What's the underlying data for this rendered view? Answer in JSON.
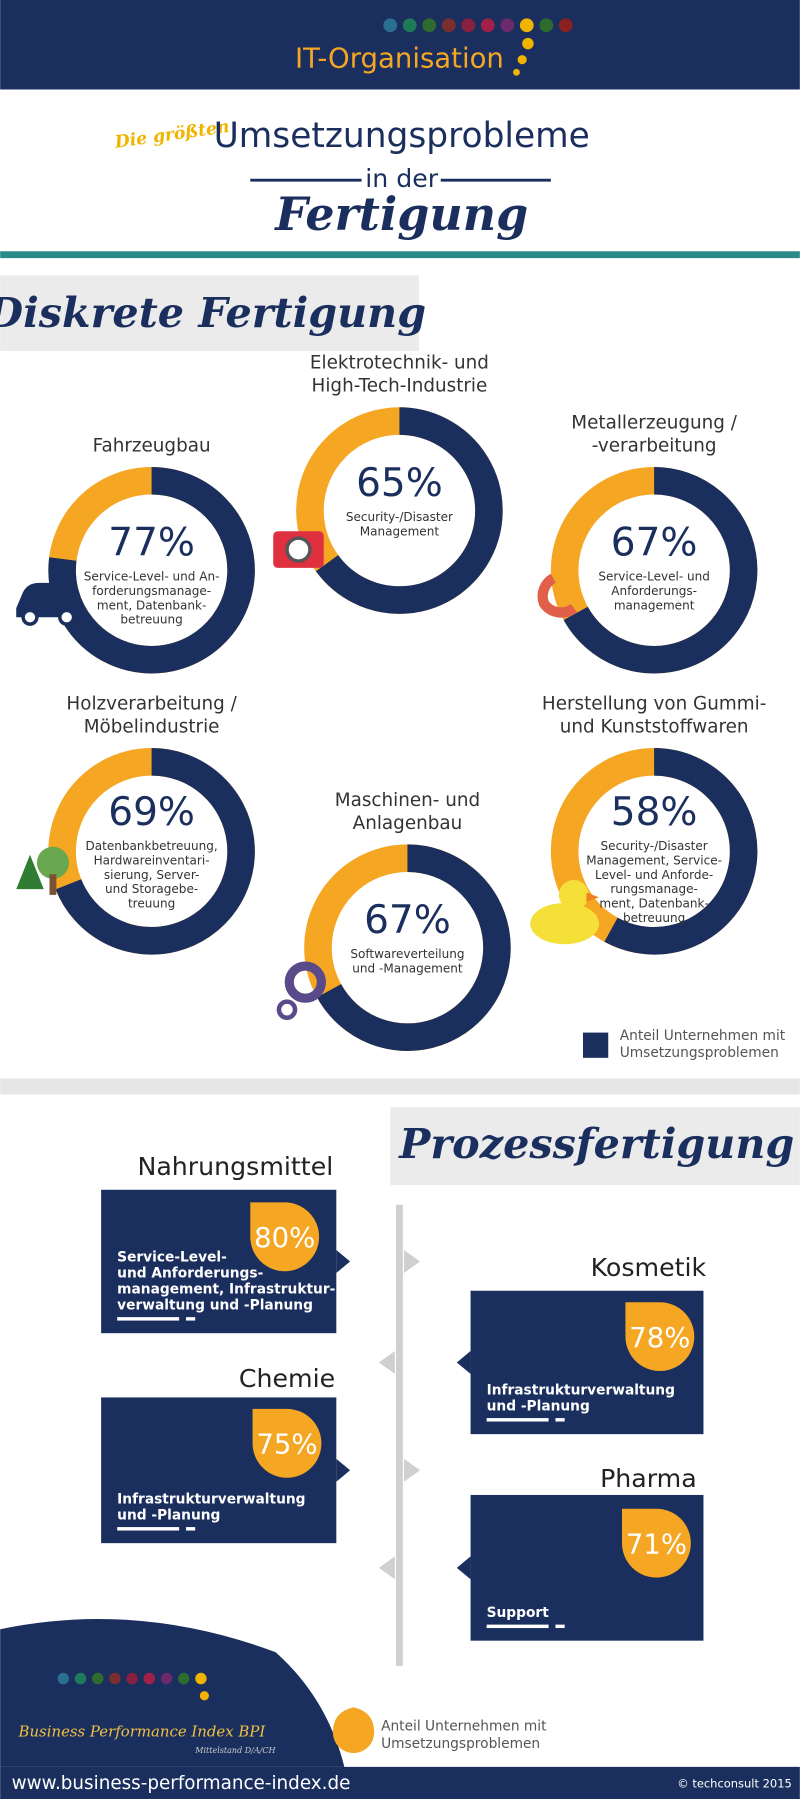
{
  "header": {
    "title": "IT-Organisation",
    "kicker": "Die größten",
    "headline": "Umsetzungsprobleme",
    "connector": "in der",
    "subject": "Fertigung"
  },
  "discrete": {
    "title": "Diskrete Fertigung",
    "items": [
      {
        "name": [
          "Fahrzeugbau"
        ],
        "value": 77,
        "value_label": "77%",
        "description": [
          "Service-Level- und An-",
          "forderungsmanage-",
          "ment, Datenbank-",
          "betreuung"
        ]
      },
      {
        "name": [
          "Elektrotechnik- und",
          "High-Tech-Industrie"
        ],
        "value": 65,
        "value_label": "65%",
        "description": [
          "Security-/Disaster",
          "Management"
        ]
      },
      {
        "name": [
          "Metallerzeugung /",
          "-verarbeitung"
        ],
        "value": 67,
        "value_label": "67%",
        "description": [
          "Service-Level- und",
          "Anforderungs-",
          "management"
        ]
      },
      {
        "name": [
          "Holzverarbeitung /",
          "Möbelindustrie"
        ],
        "value": 69,
        "value_label": "69%",
        "description": [
          "Datenbankbetreuung,",
          "Hardwareinventari-",
          "sierung, Server-",
          "und Storagebe-",
          "treuung"
        ]
      },
      {
        "name": [
          "Maschinen- und",
          "Anlagenbau"
        ],
        "value": 67,
        "value_label": "67%",
        "description": [
          "Softwareverteilung",
          "und -Management"
        ]
      },
      {
        "name": [
          "Herstellung von Gummi-",
          "und Kunststoffwaren"
        ],
        "value": 58,
        "value_label": "58%",
        "description": [
          "Security-/Disaster",
          "Management, Service-",
          "Level- und Anforde-",
          "rungsmanage-",
          "ment, Datenbank-",
          "betreuung"
        ]
      }
    ],
    "legend": [
      "Anteil Unternehmen mit",
      "Umsetzungsproblemen"
    ]
  },
  "process": {
    "title": "Prozessfertigung",
    "items": [
      {
        "name": "Nahrungsmittel",
        "value": 80,
        "value_label": "80%",
        "description": [
          "Service-Level-",
          "und Anforderungs-",
          "management, Infrastruktur-",
          "verwaltung und -Planung"
        ]
      },
      {
        "name": "Kosmetik",
        "value": 78,
        "value_label": "78%",
        "description": [
          "Infrastrukturverwaltung",
          "und -Planung"
        ]
      },
      {
        "name": "Chemie",
        "value": 75,
        "value_label": "75%",
        "description": [
          "Infrastrukturverwaltung",
          "und -Planung"
        ]
      },
      {
        "name": "Pharma",
        "value": 71,
        "value_label": "71%",
        "description": [
          "Support"
        ]
      }
    ],
    "legend": [
      "Anteil Unternehmen mit",
      "Umsetzungsproblemen"
    ]
  },
  "footer": {
    "brand": "Business Performance Index BPI",
    "brand_sub": "Mittelstand D/A/CH",
    "url": "www.business-performance-index.de",
    "copyright": "© techconsult 2015"
  }
}
